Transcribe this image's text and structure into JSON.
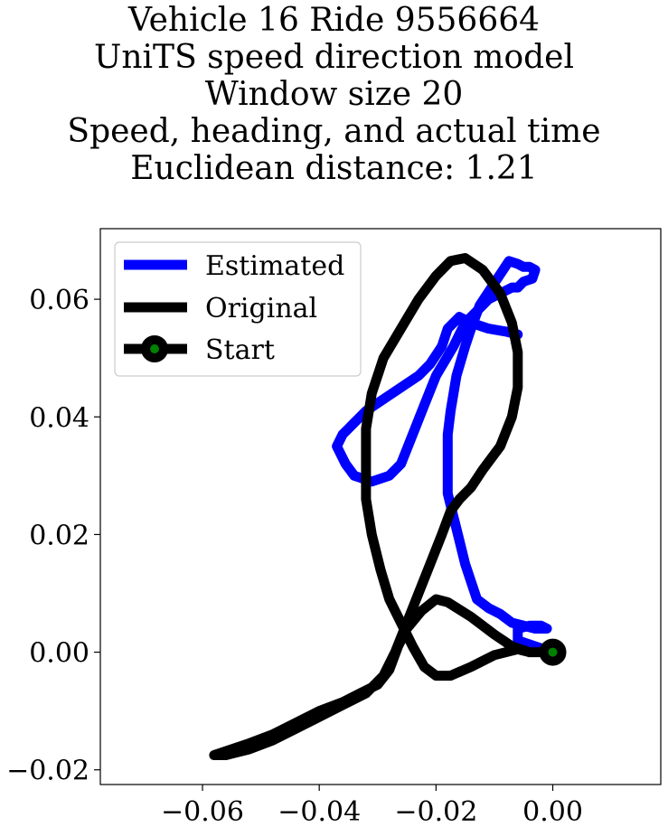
{
  "chart_data": {
    "type": "line",
    "title_lines": [
      "Vehicle 16 Ride 9556664",
      "UniTS speed direction model",
      "Window size 20",
      "Speed, heading, and actual time",
      "Euclidean distance: 1.21"
    ],
    "xlim": [
      -0.0775,
      0.0185
    ],
    "ylim": [
      -0.0225,
      0.072
    ],
    "x_ticks": [
      -0.06,
      -0.04,
      -0.02,
      0.0
    ],
    "x_tick_labels": [
      "−0.06",
      "−0.04",
      "−0.02",
      "0.00"
    ],
    "y_ticks": [
      0.06,
      0.04,
      0.02,
      0.0,
      -0.02
    ],
    "y_tick_labels": [
      "0.06",
      "0.04",
      "0.02",
      "0.00",
      "−0.02"
    ],
    "grid": false,
    "legend_position": "top-left",
    "legend": [
      "Estimated",
      "Original",
      "Start"
    ],
    "series": [
      {
        "name": "Estimated",
        "color": "#0000ff",
        "points": [
          [
            0.0,
            0.0
          ],
          [
            -0.003,
            0.001
          ],
          [
            -0.006,
            0.002
          ],
          [
            -0.006,
            0.004
          ],
          [
            -0.004,
            0.0045
          ],
          [
            -0.002,
            0.0045
          ],
          [
            -0.001,
            0.004
          ],
          [
            -0.003,
            0.004
          ],
          [
            -0.007,
            0.005
          ],
          [
            -0.009,
            0.0065
          ],
          [
            -0.011,
            0.0075
          ],
          [
            -0.013,
            0.009
          ],
          [
            -0.014,
            0.012
          ],
          [
            -0.015,
            0.015
          ],
          [
            -0.016,
            0.019
          ],
          [
            -0.017,
            0.023
          ],
          [
            -0.018,
            0.027
          ],
          [
            -0.018,
            0.033
          ],
          [
            -0.018,
            0.037
          ],
          [
            -0.0175,
            0.041
          ],
          [
            -0.0165,
            0.047
          ],
          [
            -0.015,
            0.052
          ],
          [
            -0.014,
            0.055
          ],
          [
            -0.0125,
            0.059
          ],
          [
            -0.0105,
            0.062
          ],
          [
            -0.0085,
            0.065
          ],
          [
            -0.0075,
            0.0665
          ],
          [
            -0.006,
            0.066
          ],
          [
            -0.005,
            0.0655
          ],
          [
            -0.004,
            0.0655
          ],
          [
            -0.003,
            0.065
          ],
          [
            -0.0035,
            0.0635
          ],
          [
            -0.005,
            0.063
          ],
          [
            -0.006,
            0.062
          ],
          [
            -0.007,
            0.062
          ],
          [
            -0.009,
            0.061
          ],
          [
            -0.011,
            0.06
          ],
          [
            -0.013,
            0.058
          ],
          [
            -0.015,
            0.056
          ],
          [
            -0.017,
            0.052
          ],
          [
            -0.02,
            0.047
          ],
          [
            -0.022,
            0.042
          ],
          [
            -0.024,
            0.037
          ],
          [
            -0.026,
            0.032
          ],
          [
            -0.028,
            0.03
          ],
          [
            -0.031,
            0.029
          ],
          [
            -0.034,
            0.03
          ],
          [
            -0.0355,
            0.032
          ],
          [
            -0.037,
            0.035
          ],
          [
            -0.036,
            0.037
          ],
          [
            -0.034,
            0.039
          ],
          [
            -0.032,
            0.041
          ],
          [
            -0.029,
            0.043
          ],
          [
            -0.026,
            0.045
          ],
          [
            -0.023,
            0.047
          ],
          [
            -0.021,
            0.049
          ],
          [
            -0.019,
            0.052
          ],
          [
            -0.018,
            0.055
          ],
          [
            -0.016,
            0.057
          ],
          [
            -0.014,
            0.056
          ],
          [
            -0.011,
            0.055
          ],
          [
            -0.008,
            0.0545
          ],
          [
            -0.006,
            0.054
          ]
        ]
      },
      {
        "name": "Original",
        "color": "#000000",
        "points": [
          [
            0.0,
            0.0
          ],
          [
            -0.004,
            0.0
          ],
          [
            -0.007,
            0.001
          ],
          [
            -0.01,
            0.003
          ],
          [
            -0.014,
            0.006
          ],
          [
            -0.018,
            0.0085
          ],
          [
            -0.02,
            0.009
          ],
          [
            -0.0225,
            0.007
          ],
          [
            -0.025,
            0.004
          ],
          [
            -0.0265,
            0.001
          ],
          [
            -0.028,
            -0.003
          ],
          [
            -0.03,
            -0.0055
          ],
          [
            -0.033,
            -0.007
          ],
          [
            -0.036,
            -0.0085
          ],
          [
            -0.04,
            -0.01
          ],
          [
            -0.044,
            -0.012
          ],
          [
            -0.048,
            -0.014
          ],
          [
            -0.052,
            -0.0155
          ],
          [
            -0.055,
            -0.0165
          ],
          [
            -0.058,
            -0.0175
          ],
          [
            -0.056,
            -0.0175
          ],
          [
            -0.052,
            -0.0165
          ],
          [
            -0.048,
            -0.015
          ],
          [
            -0.044,
            -0.013
          ],
          [
            -0.04,
            -0.011
          ],
          [
            -0.036,
            -0.009
          ],
          [
            -0.032,
            -0.007
          ],
          [
            -0.029,
            -0.004
          ],
          [
            -0.027,
            0.0
          ],
          [
            -0.025,
            0.005
          ],
          [
            -0.023,
            0.01
          ],
          [
            -0.021,
            0.015
          ],
          [
            -0.019,
            0.02
          ],
          [
            -0.0175,
            0.024
          ],
          [
            -0.016,
            0.026
          ],
          [
            -0.014,
            0.028
          ],
          [
            -0.012,
            0.031
          ],
          [
            -0.009,
            0.035
          ],
          [
            -0.007,
            0.04
          ],
          [
            -0.006,
            0.045
          ],
          [
            -0.006,
            0.051
          ],
          [
            -0.007,
            0.056
          ],
          [
            -0.009,
            0.061
          ],
          [
            -0.012,
            0.065
          ],
          [
            -0.015,
            0.067
          ],
          [
            -0.0175,
            0.0665
          ],
          [
            -0.02,
            0.064
          ],
          [
            -0.023,
            0.06
          ],
          [
            -0.026,
            0.055
          ],
          [
            -0.029,
            0.05
          ],
          [
            -0.031,
            0.044
          ],
          [
            -0.032,
            0.038
          ],
          [
            -0.032,
            0.032
          ],
          [
            -0.032,
            0.026
          ],
          [
            -0.031,
            0.02
          ],
          [
            -0.0295,
            0.014
          ],
          [
            -0.028,
            0.009
          ],
          [
            -0.026,
            0.005
          ],
          [
            -0.024,
            0.001
          ],
          [
            -0.022,
            -0.0025
          ],
          [
            -0.02,
            -0.004
          ],
          [
            -0.0175,
            -0.004
          ],
          [
            -0.014,
            -0.0025
          ],
          [
            -0.01,
            -0.0005
          ],
          [
            -0.006,
            0.0005
          ],
          [
            -0.004,
            0.0
          ],
          [
            0.0,
            0.0
          ]
        ]
      },
      {
        "name": "Start",
        "color": "#000000",
        "fill": "#008000",
        "points": [
          [
            0.0,
            0.0
          ]
        ]
      }
    ]
  }
}
